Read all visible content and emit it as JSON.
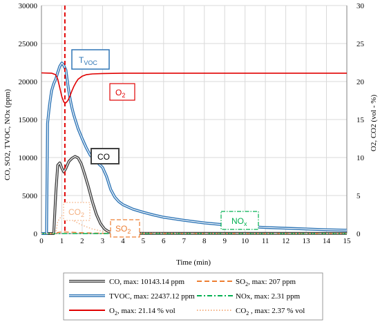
{
  "chart_data": {
    "type": "line",
    "xlabel": "Time (min)",
    "ylabel_left": "CO, SO2, TVOC, NOx (ppm)",
    "ylabel_right": "O2, CO2 (vol - %)",
    "xlim": [
      0,
      15
    ],
    "ylim_left": [
      0,
      30000
    ],
    "ylim_right": [
      0,
      30
    ],
    "x_ticks": [
      "0",
      "1",
      "2",
      "3",
      "4",
      "5",
      "6",
      "7",
      "8",
      "9",
      "10",
      "11",
      "12",
      "13",
      "14",
      "15"
    ],
    "y_ticks_left": [
      "0",
      "5000",
      "10000",
      "15000",
      "20000",
      "25000",
      "30000"
    ],
    "y_ticks_right": [
      "0",
      "5",
      "10",
      "15",
      "20",
      "25",
      "30"
    ],
    "grid": true,
    "legend_position": "bottom",
    "marker_line_x": 1.15,
    "series": [
      {
        "name": "CO, max: 10143.14 ppm",
        "axis": "left",
        "color": "#404040",
        "style": "double",
        "x": [
          0,
          0.6,
          0.72,
          0.8,
          0.9,
          1.0,
          1.1,
          1.2,
          1.35,
          1.5,
          1.65,
          1.8,
          1.95,
          2.1,
          2.3,
          2.5,
          2.7,
          2.9,
          3.1,
          3.3,
          3.6,
          4,
          5,
          6,
          15
        ],
        "y": [
          0,
          0,
          6000,
          9000,
          9300,
          8600,
          8100,
          8600,
          9500,
          9900,
          10143,
          9950,
          9200,
          8000,
          6200,
          4200,
          2500,
          1300,
          600,
          250,
          100,
          50,
          30,
          20,
          20
        ]
      },
      {
        "name": "SO2, max: 207 ppm",
        "axis": "left",
        "color": "#ED7D31",
        "style": "dash",
        "x": [
          0,
          0.7,
          0.8,
          1.0,
          1.2,
          1.5,
          1.8,
          2.2,
          2.6,
          3,
          3.5,
          4,
          5,
          8,
          15
        ],
        "y": [
          0,
          0,
          150,
          207,
          200,
          170,
          130,
          90,
          60,
          40,
          25,
          15,
          10,
          5,
          5
        ]
      },
      {
        "name": "TVOC, max: 22437.12 ppm",
        "axis": "left",
        "color": "#2E75B6",
        "style": "double",
        "x": [
          0,
          0.25,
          0.3,
          0.4,
          0.5,
          0.6,
          0.7,
          0.8,
          0.9,
          1.0,
          1.05,
          1.1,
          1.2,
          1.3,
          1.4,
          1.5,
          1.6,
          1.8,
          2.0,
          2.2,
          2.4,
          2.6,
          2.8,
          3.0,
          3.2,
          3.4,
          3.6,
          3.8,
          4.0,
          4.5,
          5,
          5.5,
          6,
          7,
          8,
          9,
          10,
          11,
          12,
          13,
          14,
          15
        ],
        "y": [
          0,
          0,
          14500,
          17000,
          18800,
          19700,
          20300,
          21200,
          22000,
          22437,
          22300,
          22100,
          21500,
          19500,
          17800,
          16500,
          15500,
          13800,
          12500,
          11300,
          10300,
          9700,
          9200,
          8700,
          7500,
          5800,
          4800,
          4200,
          3800,
          3200,
          2800,
          2450,
          2150,
          1750,
          1400,
          1150,
          950,
          800,
          700,
          600,
          500,
          450
        ]
      },
      {
        "name": "NOx, max: 2.31 ppm",
        "axis": "left",
        "color": "#00B050",
        "style": "dashdot",
        "x": [
          0,
          15
        ],
        "y": [
          0,
          0
        ]
      },
      {
        "name": "O2, max: 21.14 % vol",
        "axis": "right",
        "color": "#E00000",
        "style": "solid",
        "x": [
          0,
          0.5,
          0.7,
          0.8,
          0.9,
          1.0,
          1.1,
          1.2,
          1.3,
          1.4,
          1.5,
          1.6,
          1.7,
          1.8,
          2.0,
          2.2,
          2.5,
          3.0,
          4.0,
          6.0,
          10,
          15
        ],
        "y": [
          21.14,
          21.1,
          20.9,
          20.3,
          19.2,
          18.0,
          17.3,
          17.2,
          17.5,
          18.1,
          18.8,
          19.4,
          19.9,
          20.3,
          20.7,
          20.9,
          21.0,
          21.05,
          21.1,
          21.1,
          21.1,
          21.1
        ]
      },
      {
        "name": "CO2, max: 2.37 % vol",
        "axis": "right",
        "color": "#F4B183",
        "style": "dot",
        "x": [
          0,
          0.7,
          0.8,
          1.0,
          1.2,
          1.5,
          2.0,
          2.5,
          3.0,
          3.5,
          4.0,
          5.0,
          8,
          15
        ],
        "y": [
          0,
          0,
          1.6,
          2.37,
          2.2,
          1.8,
          1.1,
          0.6,
          0.3,
          0.15,
          0.1,
          0.05,
          0.02,
          0.02
        ]
      }
    ]
  },
  "callouts": {
    "tvoc": {
      "main": "T",
      "sub": "VOC"
    },
    "o2": {
      "main": "O",
      "sub": "2"
    },
    "co": {
      "main": "CO"
    },
    "co2": {
      "main": "CO",
      "sub": "2"
    },
    "so2": {
      "main": "SO",
      "sub": "2"
    },
    "nox": {
      "main": "NO",
      "sub": "x"
    }
  },
  "legend": [
    {
      "main": "CO, max: 10143.14 ppm"
    },
    {
      "main": "SO",
      "sub": "2",
      "rest": ", max: 207 ppm"
    },
    {
      "main": "TVOC, max: 22437.12 ppm"
    },
    {
      "main": "NOx, max: 2.31 ppm"
    },
    {
      "main": "O",
      "sub": "2",
      "rest": ", max: 21.14 % vol"
    },
    {
      "main": "CO",
      "sub": "2",
      "rest": " , max: 2.37 % vol"
    }
  ],
  "colors": {
    "grid": "#d9d9d9",
    "axis": "#808080",
    "marker": "#E00000"
  }
}
